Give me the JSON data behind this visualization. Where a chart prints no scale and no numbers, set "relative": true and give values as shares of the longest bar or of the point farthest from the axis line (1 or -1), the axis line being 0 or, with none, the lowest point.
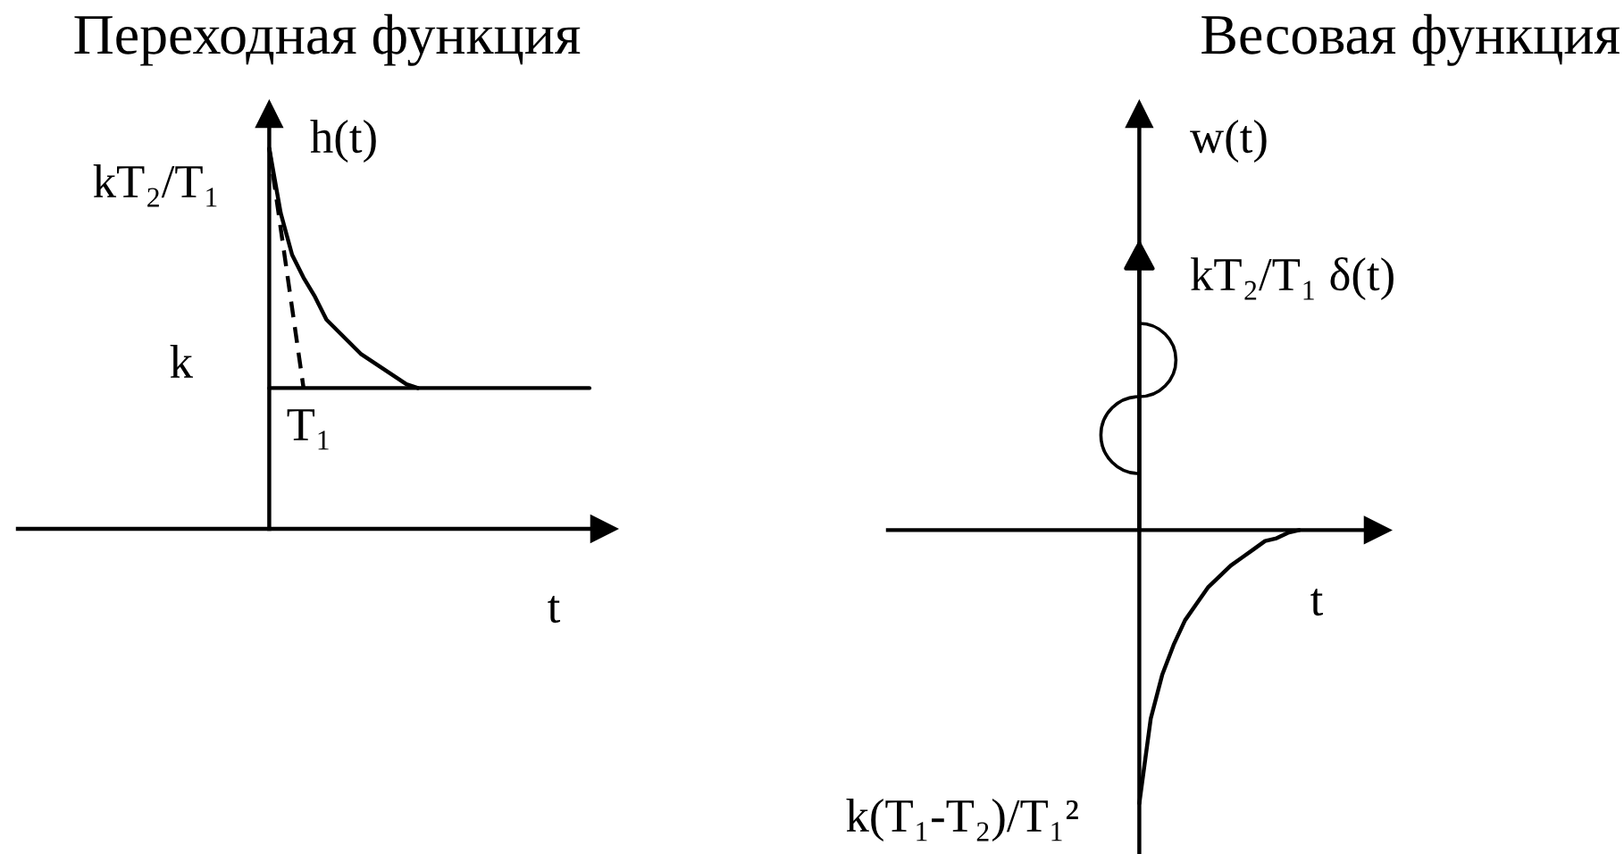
{
  "chart_data": [
    {
      "type": "line",
      "title": "Переходная функция",
      "xlabel": "t",
      "ylabel": "h(t)",
      "relative": true,
      "categories": [
        null,
        null,
        null,
        null,
        null,
        null,
        null,
        null,
        null,
        null,
        null,
        null,
        null,
        null,
        null,
        null,
        null,
        null,
        null,
        null,
        null,
        null,
        null,
        null,
        null,
        null,
        null,
        null,
        null
      ],
      "series": [
        {
          "color": "#000000",
          "values": [
            1.0,
            0.83,
            0.72,
            0.66,
            0.61,
            0.55,
            0.52,
            0.49,
            0.46,
            0.44,
            0.42,
            0.4,
            0.38,
            0.37,
            null,
            null,
            null,
            null,
            null,
            null,
            null,
            null,
            null,
            null,
            null,
            null,
            null,
            null,
            null
          ]
        },
        {
          "color": "#000000",
          "values": [
            0.37,
            0.37,
            0.37,
            0.37,
            0.37,
            0.37,
            0.37,
            0.37,
            0.37,
            0.37,
            0.37,
            0.37,
            0.37,
            0.37,
            0.37,
            0.37,
            0.37,
            0.37,
            0.37,
            0.37,
            0.37,
            0.37,
            0.37,
            0.37,
            0.37,
            0.37,
            0.37,
            0.37,
            0.37
          ]
        },
        {
          "color": "#000000",
          "line_style": "dashed",
          "values": [
            1.0,
            0.79,
            0.58,
            0.37,
            null,
            null,
            null,
            null,
            null,
            null,
            null,
            null,
            null,
            null,
            null,
            null,
            null,
            null,
            null,
            null,
            null,
            null,
            null,
            null,
            null,
            null,
            null,
            null,
            null
          ]
        }
      ],
      "annotations": [
        "kT₂/T₁",
        "k",
        "T₁"
      ]
    },
    {
      "type": "line",
      "title": "Весовая функция",
      "xlabel": "t",
      "ylabel": "w(t)",
      "relative": true,
      "categories": [
        null,
        null,
        null,
        null,
        null,
        null,
        null,
        null,
        null,
        null,
        null,
        null,
        null,
        null,
        null
      ],
      "series": [
        {
          "color": "#000000",
          "values": [
            -1.0,
            -0.69,
            -0.53,
            -0.42,
            -0.33,
            -0.27,
            -0.21,
            -0.17,
            -0.13,
            -0.1,
            -0.07,
            -0.04,
            -0.03,
            -0.01,
            0.0
          ]
        }
      ],
      "annotations": [
        "kT₂/T₁ δ(t)",
        "k(T₁-T₂)/T₁²"
      ]
    }
  ]
}
